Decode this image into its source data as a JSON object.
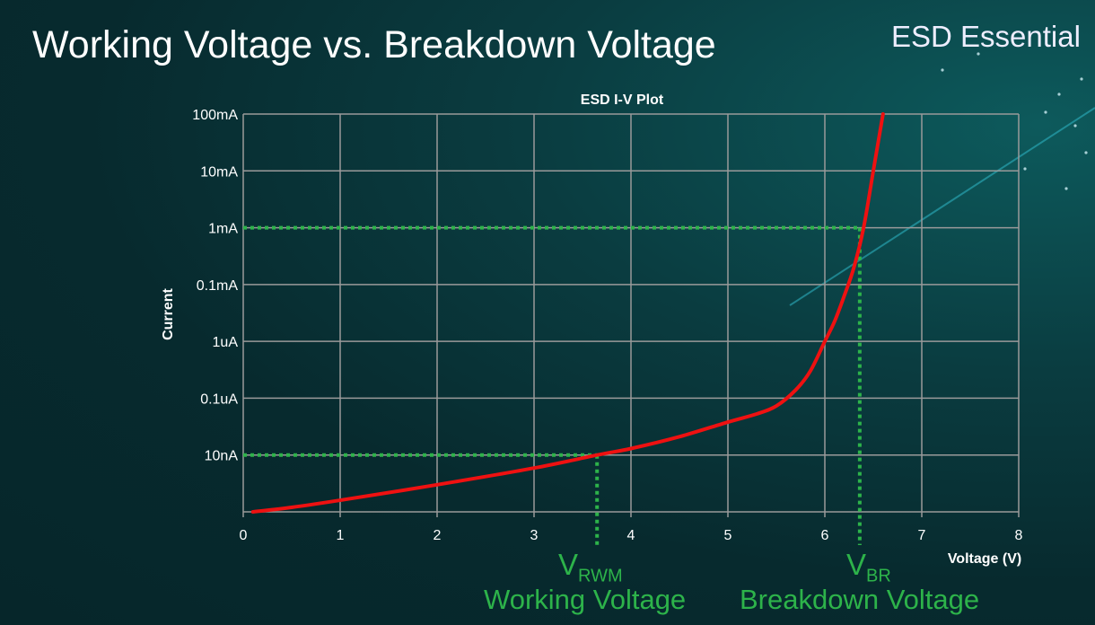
{
  "slide": {
    "title": "Working Voltage vs. Breakdown Voltage",
    "brand": "ESD Essential"
  },
  "annotations": {
    "vrwm": {
      "symbol": "V",
      "subscript": "RWM",
      "label": "Working Voltage"
    },
    "vbr": {
      "symbol": "V",
      "subscript": "BR",
      "label": "Breakdown Voltage"
    }
  },
  "colors": {
    "curve": "#ee1111",
    "guide": "#2db34a",
    "grid": "#9a9a9a",
    "background": "#072a2e"
  },
  "chart_data": {
    "type": "line",
    "title": "ESD I-V Plot",
    "xlabel": "Voltage (V)",
    "ylabel": "Current",
    "xlim": [
      0,
      8
    ],
    "x_ticks": [
      0,
      1,
      2,
      3,
      4,
      5,
      6,
      7,
      8
    ],
    "y_scale": "log",
    "ylim": [
      1e-09,
      0.1
    ],
    "y_ticks": [
      {
        "label": "10nA",
        "value": 1e-08
      },
      {
        "label": "0.1uA",
        "value": 1e-07
      },
      {
        "label": "1uA",
        "value": 1e-06
      },
      {
        "label": "0.1mA",
        "value": 0.0001
      },
      {
        "label": "1mA",
        "value": 0.001
      },
      {
        "label": "10mA",
        "value": 0.01
      },
      {
        "label": "100mA",
        "value": 0.1
      }
    ],
    "grid": true,
    "series": [
      {
        "x": [
          0.1,
          0.5,
          1,
          2,
          3,
          3.65,
          4,
          4.5,
          5,
          5.3,
          5.5,
          5.7,
          5.85,
          6,
          6.1,
          6.2,
          6.3,
          6.4,
          6.5,
          6.6
        ],
        "y": [
          1e-09,
          1.2e-09,
          1.6e-09,
          3e-09,
          5.9e-09,
          1e-08,
          1.3e-08,
          2.1e-08,
          3.8e-08,
          5.3e-08,
          7.3e-08,
          1.4e-07,
          3e-07,
          1e-06,
          5e-06,
          4e-05,
          0.0002,
          0.001,
          0.01,
          0.1
        ]
      }
    ],
    "reference_lines": [
      {
        "name": "VRWM",
        "x": 3.65,
        "y": 1e-08
      },
      {
        "name": "VBR",
        "x": 6.36,
        "y": 0.001
      }
    ]
  }
}
